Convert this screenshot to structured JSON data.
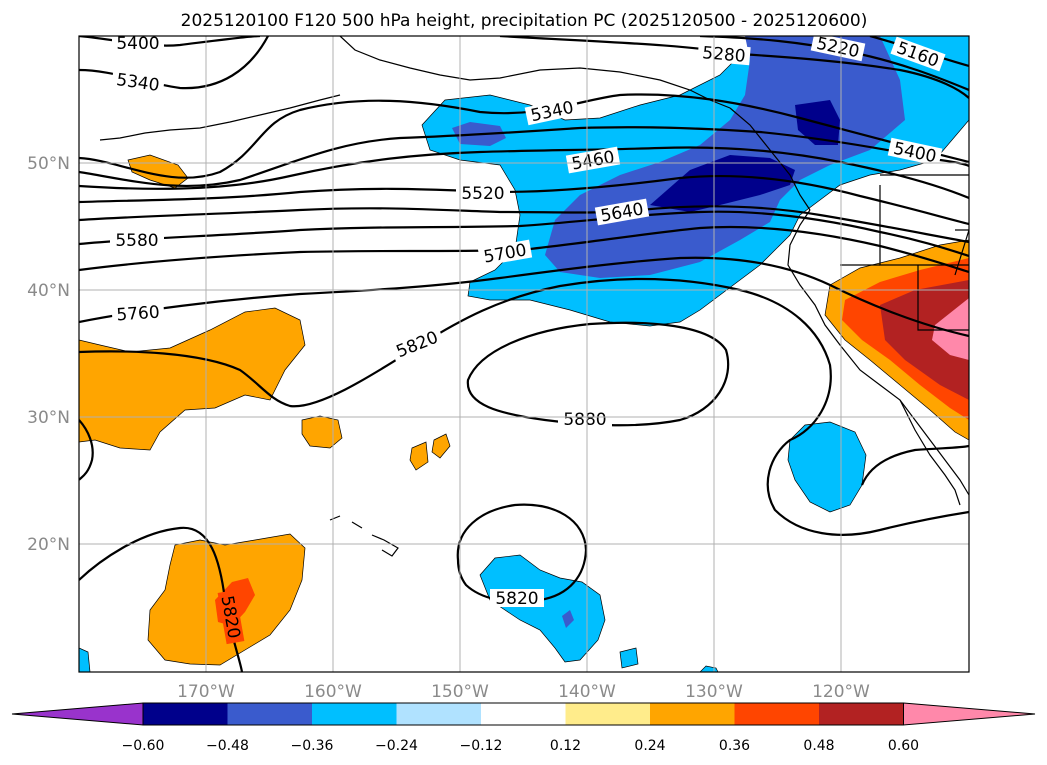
{
  "title": "2025120100 F120 500 hPa height, precipitation PC (2025120500 - 2025120600)",
  "axes": {
    "lon_labels": [
      "170°W",
      "160°W",
      "150°W",
      "140°W",
      "130°W",
      "120°W"
    ],
    "lat_labels": [
      "50°N",
      "40°N",
      "30°N",
      "20°N"
    ]
  },
  "colorbar": {
    "ticks": [
      "−0.60",
      "−0.48",
      "−0.36",
      "−0.24",
      "−0.12",
      "0.12",
      "0.24",
      "0.36",
      "0.48",
      "0.60"
    ],
    "colors": [
      "#9933cc",
      "#00008b",
      "#3a5bcd",
      "#00bfff",
      "#b0e2ff",
      "#ffffff",
      "#ffec8b",
      "#ffa500",
      "#ff4500",
      "#b22222",
      "#ff88aa"
    ]
  },
  "contour_labels": {
    "c5400a": "5400",
    "c5340a": "5340",
    "c5280": "5280",
    "c5220": "5220",
    "c5160": "5160",
    "c5340b": "5340",
    "c5460": "5460",
    "c5400b": "5400",
    "c5520": "5520",
    "c5640": "5640",
    "c5580": "5580",
    "c5700": "5700",
    "c5760": "5760",
    "c5820a": "5820",
    "c5880": "5880",
    "c5820b": "5820",
    "c5820c": "5820"
  }
}
